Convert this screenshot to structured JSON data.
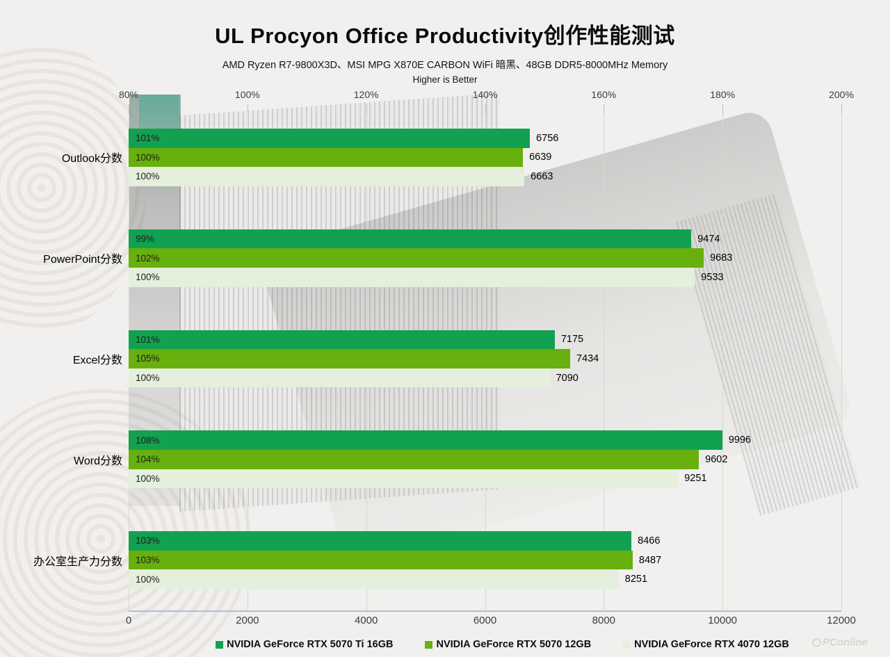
{
  "header": {
    "title": "UL Procyon Office Productivity创作性能测试",
    "subtitle": "AMD Ryzen R7-9800X3D、MSI MPG X870E CARBON WiFi 暗黑、48GB DDR5-8000MHz Memory",
    "note": "Higher is Better"
  },
  "chart_data": {
    "type": "bar",
    "orientation": "horizontal",
    "title": "UL Procyon Office Productivity创作性能测试",
    "categories": [
      "Outlook分数",
      "PowerPoint分数",
      "Excel分数",
      "Word分数",
      "办公室生产力分数"
    ],
    "series": [
      {
        "name": "NVIDIA GeForce RTX 5070 Ti 16GB",
        "color": "#12a150",
        "values": [
          6756,
          9474,
          7175,
          9996,
          8466
        ],
        "percent_labels": [
          "101%",
          "99%",
          "101%",
          "108%",
          "103%"
        ]
      },
      {
        "name": "NVIDIA GeForce RTX 5070 12GB",
        "color": "#67b00d",
        "values": [
          6639,
          9683,
          7434,
          9602,
          8487
        ],
        "percent_labels": [
          "100%",
          "102%",
          "105%",
          "104%",
          "103%"
        ]
      },
      {
        "name": "NVIDIA GeForce RTX 4070 12GB",
        "color": "#e4efdc",
        "values": [
          6663,
          9533,
          7090,
          9251,
          8251
        ],
        "percent_labels": [
          "100%",
          "100%",
          "100%",
          "100%",
          "100%"
        ]
      }
    ],
    "top_axis": {
      "min": 80,
      "max": 200,
      "tick_labels": [
        "80%",
        "100%",
        "120%",
        "140%",
        "160%",
        "180%",
        "200%"
      ]
    },
    "bottom_axis": {
      "min": 0,
      "max": 12000,
      "tick_labels": [
        "0",
        "2000",
        "4000",
        "6000",
        "8000",
        "10000",
        "12000"
      ]
    },
    "grid": true,
    "legend_position": "bottom"
  },
  "watermark": {
    "text": "PConline"
  }
}
